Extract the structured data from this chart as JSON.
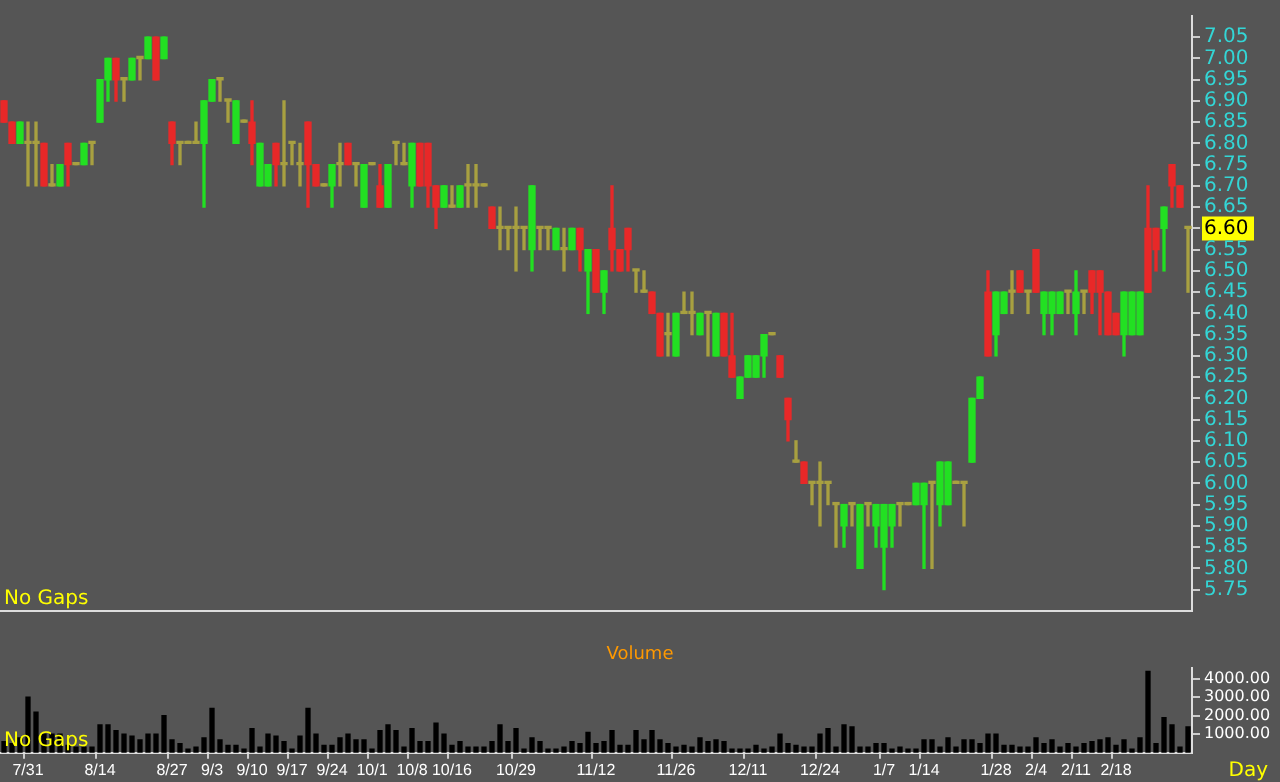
{
  "chart_data": [
    {
      "type": "candlestick",
      "categories": [
        null,
        null,
        null,
        null,
        null,
        null,
        null,
        null,
        null,
        null,
        null,
        null,
        null,
        null,
        null,
        null,
        null,
        null,
        null,
        null,
        null,
        null,
        null,
        null,
        null,
        null,
        null,
        null,
        null,
        null,
        null,
        null,
        null,
        null,
        null,
        null,
        null,
        null,
        null,
        null,
        null,
        null,
        null,
        null,
        null,
        null,
        null,
        null,
        null,
        null,
        null,
        null,
        null,
        null,
        null,
        null,
        null,
        null,
        null,
        null,
        null,
        null,
        null,
        null,
        null,
        null,
        null,
        null,
        null,
        null,
        null,
        null,
        null,
        null,
        null,
        null,
        null,
        null,
        null,
        null,
        null,
        null,
        null,
        null,
        null,
        null,
        null,
        null,
        null,
        null,
        null,
        null,
        null,
        null,
        null,
        null,
        null,
        null,
        null,
        null,
        null,
        null,
        null,
        null,
        null,
        null,
        null,
        null,
        null,
        null,
        null,
        null,
        null,
        null,
        null,
        null,
        null,
        null,
        null,
        null,
        null,
        null,
        null,
        null,
        null,
        null,
        null,
        null,
        null,
        null,
        null,
        null,
        null,
        null,
        null,
        null,
        null,
        null,
        null,
        null,
        null,
        null,
        null,
        null,
        null,
        null,
        null,
        null,
        null
      ],
      "ohlc": [
        [
          6.9,
          6.9,
          6.85,
          6.85
        ],
        [
          6.85,
          6.85,
          6.8,
          6.8
        ],
        [
          6.8,
          6.85,
          6.8,
          6.85
        ],
        [
          6.8,
          6.85,
          6.7,
          6.8
        ],
        [
          6.8,
          6.85,
          6.7,
          6.8
        ],
        [
          6.8,
          6.8,
          6.7,
          6.7
        ],
        [
          6.7,
          6.75,
          6.7,
          6.7
        ],
        [
          6.7,
          6.75,
          6.7,
          6.75
        ],
        [
          6.8,
          6.8,
          6.7,
          6.75
        ],
        [
          6.75,
          6.75,
          6.75,
          6.75
        ],
        [
          6.75,
          6.8,
          6.75,
          6.8
        ],
        [
          6.8,
          6.8,
          6.75,
          6.8
        ],
        [
          6.85,
          6.95,
          6.85,
          6.95
        ],
        [
          6.95,
          7,
          6.9,
          7
        ],
        [
          7,
          7,
          6.9,
          6.95
        ],
        [
          6.95,
          6.95,
          6.9,
          6.95
        ],
        [
          6.95,
          7,
          6.95,
          7
        ],
        [
          7,
          7,
          6.95,
          7
        ],
        [
          7,
          7.05,
          7,
          7.05
        ],
        [
          7.05,
          7.05,
          6.95,
          6.95
        ],
        [
          7,
          7.05,
          7,
          7.05
        ],
        [
          6.85,
          6.85,
          6.75,
          6.8
        ],
        [
          6.8,
          6.8,
          6.75,
          6.8
        ],
        [
          6.8,
          6.8,
          6.8,
          6.8
        ],
        [
          6.8,
          6.85,
          6.8,
          6.8
        ],
        [
          6.8,
          6.9,
          6.65,
          6.9
        ],
        [
          6.9,
          6.95,
          6.9,
          6.95
        ],
        [
          6.95,
          6.95,
          6.9,
          6.95
        ],
        [
          6.9,
          6.9,
          6.85,
          6.9
        ],
        [
          6.8,
          6.9,
          6.8,
          6.9
        ],
        [
          6.85,
          6.85,
          6.85,
          6.85
        ],
        [
          6.85,
          6.9,
          6.75,
          6.8
        ],
        [
          6.7,
          6.8,
          6.7,
          6.8
        ],
        [
          6.7,
          6.75,
          6.7,
          6.75
        ],
        [
          6.8,
          6.8,
          6.7,
          6.75
        ],
        [
          6.75,
          6.9,
          6.7,
          6.75
        ],
        [
          6.8,
          6.8,
          6.75,
          6.8
        ],
        [
          6.75,
          6.8,
          6.7,
          6.75
        ],
        [
          6.85,
          6.85,
          6.65,
          6.75
        ],
        [
          6.75,
          6.75,
          6.7,
          6.7
        ],
        [
          6.7,
          6.7,
          6.7,
          6.7
        ],
        [
          6.7,
          6.75,
          6.65,
          6.75
        ],
        [
          6.75,
          6.8,
          6.7,
          6.75
        ],
        [
          6.8,
          6.8,
          6.75,
          6.75
        ],
        [
          6.75,
          6.75,
          6.7,
          6.75
        ],
        [
          6.65,
          6.75,
          6.65,
          6.75
        ],
        [
          6.75,
          6.75,
          6.75,
          6.75
        ],
        [
          6.7,
          6.75,
          6.65,
          6.65
        ],
        [
          6.65,
          6.75,
          6.65,
          6.75
        ],
        [
          6.8,
          6.8,
          6.75,
          6.8
        ],
        [
          6.75,
          6.8,
          6.75,
          6.75
        ],
        [
          6.7,
          6.8,
          6.65,
          6.8
        ],
        [
          6.8,
          6.8,
          6.7,
          6.7
        ],
        [
          6.8,
          6.8,
          6.65,
          6.7
        ],
        [
          6.7,
          6.7,
          6.6,
          6.65
        ],
        [
          6.65,
          6.7,
          6.65,
          6.7
        ],
        [
          6.65,
          6.7,
          6.65,
          6.65
        ],
        [
          6.65,
          6.7,
          6.65,
          6.7
        ],
        [
          6.7,
          6.75,
          6.65,
          6.7
        ],
        [
          6.7,
          6.75,
          6.65,
          6.7
        ],
        [
          6.7,
          6.7,
          6.7,
          6.7
        ],
        [
          6.65,
          6.65,
          6.6,
          6.6
        ],
        [
          6.6,
          6.65,
          6.55,
          6.6
        ],
        [
          6.6,
          6.6,
          6.55,
          6.6
        ],
        [
          6.6,
          6.65,
          6.5,
          6.6
        ],
        [
          6.6,
          6.6,
          6.55,
          6.6
        ],
        [
          6.55,
          6.7,
          6.5,
          6.7
        ],
        [
          6.6,
          6.6,
          6.55,
          6.6
        ],
        [
          6.6,
          6.6,
          6.55,
          6.6
        ],
        [
          6.55,
          6.6,
          6.55,
          6.6
        ],
        [
          6.55,
          6.6,
          6.5,
          6.55
        ],
        [
          6.55,
          6.6,
          6.55,
          6.6
        ],
        [
          6.6,
          6.6,
          6.5,
          6.55
        ],
        [
          6.5,
          6.55,
          6.4,
          6.55
        ],
        [
          6.55,
          6.55,
          6.45,
          6.45
        ],
        [
          6.45,
          6.5,
          6.4,
          6.5
        ],
        [
          6.6,
          6.7,
          6.5,
          6.55
        ],
        [
          6.55,
          6.55,
          6.5,
          6.5
        ],
        [
          6.6,
          6.6,
          6.5,
          6.55
        ],
        [
          6.5,
          6.5,
          6.45,
          6.5
        ],
        [
          6.45,
          6.5,
          6.45,
          6.45
        ],
        [
          6.45,
          6.45,
          6.4,
          6.4
        ],
        [
          6.4,
          6.4,
          6.3,
          6.3
        ],
        [
          6.35,
          6.4,
          6.3,
          6.35
        ],
        [
          6.3,
          6.4,
          6.3,
          6.4
        ],
        [
          6.4,
          6.45,
          6.4,
          6.4
        ],
        [
          6.4,
          6.45,
          6.35,
          6.4
        ],
        [
          6.35,
          6.4,
          6.35,
          6.4
        ],
        [
          6.4,
          6.4,
          6.3,
          6.4
        ],
        [
          6.3,
          6.4,
          6.3,
          6.4
        ],
        [
          6.4,
          6.4,
          6.3,
          6.3
        ],
        [
          6.3,
          6.4,
          6.25,
          6.25
        ],
        [
          6.2,
          6.25,
          6.2,
          6.25
        ],
        [
          6.25,
          6.3,
          6.25,
          6.3
        ],
        [
          6.25,
          6.3,
          6.25,
          6.3
        ],
        [
          6.3,
          6.35,
          6.25,
          6.35
        ],
        [
          6.35,
          6.35,
          6.35,
          6.35
        ],
        [
          6.3,
          6.3,
          6.25,
          6.25
        ],
        [
          6.2,
          6.2,
          6.1,
          6.15
        ],
        [
          6.05,
          6.1,
          6.05,
          6.05
        ],
        [
          6.05,
          6.05,
          6,
          6
        ],
        [
          6,
          6,
          5.95,
          6
        ],
        [
          6,
          6.05,
          5.9,
          6
        ],
        [
          6,
          6,
          5.95,
          6
        ],
        [
          5.95,
          5.95,
          5.85,
          5.95
        ],
        [
          5.9,
          5.95,
          5.85,
          5.95
        ],
        [
          5.95,
          5.95,
          5.9,
          5.95
        ],
        [
          5.8,
          5.95,
          5.8,
          5.95
        ],
        [
          5.95,
          5.95,
          5.9,
          5.95
        ],
        [
          5.9,
          5.95,
          5.85,
          5.95
        ],
        [
          5.85,
          5.95,
          5.75,
          5.95
        ],
        [
          5.9,
          5.95,
          5.85,
          5.95
        ],
        [
          5.95,
          5.95,
          5.9,
          5.95
        ],
        [
          5.95,
          5.95,
          5.95,
          5.95
        ],
        [
          5.95,
          6,
          5.95,
          6
        ],
        [
          5.95,
          6,
          5.8,
          6
        ],
        [
          6,
          6,
          5.8,
          6
        ],
        [
          5.95,
          6.05,
          5.9,
          6.05
        ],
        [
          5.95,
          6.05,
          5.95,
          6.05
        ],
        [
          6,
          6,
          6,
          6
        ],
        [
          6,
          6,
          5.9,
          6
        ],
        [
          6.05,
          6.2,
          6.05,
          6.2
        ],
        [
          6.2,
          6.25,
          6.2,
          6.25
        ],
        [
          6.45,
          6.5,
          6.3,
          6.3
        ],
        [
          6.35,
          6.45,
          6.3,
          6.45
        ],
        [
          6.4,
          6.45,
          6.4,
          6.45
        ],
        [
          6.45,
          6.5,
          6.4,
          6.45
        ],
        [
          6.5,
          6.5,
          6.45,
          6.45
        ],
        [
          6.45,
          6.45,
          6.4,
          6.45
        ],
        [
          6.55,
          6.55,
          6.45,
          6.45
        ],
        [
          6.4,
          6.45,
          6.35,
          6.45
        ],
        [
          6.4,
          6.45,
          6.35,
          6.45
        ],
        [
          6.4,
          6.45,
          6.4,
          6.45
        ],
        [
          6.45,
          6.45,
          6.4,
          6.45
        ],
        [
          6.4,
          6.5,
          6.35,
          6.45
        ],
        [
          6.45,
          6.45,
          6.4,
          6.45
        ],
        [
          6.5,
          6.5,
          6.4,
          6.45
        ],
        [
          6.5,
          6.5,
          6.35,
          6.45
        ],
        [
          6.45,
          6.45,
          6.35,
          6.35
        ],
        [
          6.4,
          6.4,
          6.35,
          6.35
        ],
        [
          6.35,
          6.45,
          6.3,
          6.45
        ],
        [
          6.35,
          6.45,
          6.35,
          6.45
        ],
        [
          6.35,
          6.45,
          6.35,
          6.45
        ],
        [
          6.6,
          6.7,
          6.45,
          6.45
        ],
        [
          6.6,
          6.6,
          6.5,
          6.55
        ],
        [
          6.6,
          6.65,
          6.5,
          6.65
        ],
        [
          6.75,
          6.75,
          6.65,
          6.7
        ],
        [
          6.7,
          6.7,
          6.65,
          6.65
        ],
        [
          6.6,
          6.6,
          6.45,
          6.6
        ]
      ],
      "colors": [
        "#e82828",
        "#e82828",
        "#22e022",
        "#a8a040",
        "#a8a040",
        "#e82828",
        "#a8a040",
        "#22e022",
        "#e82828",
        "#a8a040",
        "#22e022",
        "#a8a040",
        "#22e022",
        "#22e022",
        "#e82828",
        "#a8a040",
        "#22e022",
        "#a8a040",
        "#22e022",
        "#e82828",
        "#22e022",
        "#e82828",
        "#a8a040",
        "#a8a040",
        "#a8a040",
        "#22e022",
        "#22e022",
        "#a8a040",
        "#a8a040",
        "#22e022",
        "#a8a040",
        "#e82828",
        "#22e022",
        "#22e022",
        "#e82828",
        "#a8a040",
        "#a8a040",
        "#a8a040",
        "#e82828",
        "#e82828",
        "#a8a040",
        "#22e022",
        "#a8a040",
        "#e82828",
        "#a8a040",
        "#22e022",
        "#a8a040",
        "#e82828",
        "#22e022",
        "#a8a040",
        "#a8a040",
        "#22e022",
        "#e82828",
        "#e82828",
        "#e82828",
        "#22e022",
        "#a8a040",
        "#22e022",
        "#a8a040",
        "#a8a040",
        "#a8a040",
        "#e82828",
        "#a8a040",
        "#a8a040",
        "#a8a040",
        "#a8a040",
        "#22e022",
        "#a8a040",
        "#a8a040",
        "#22e022",
        "#a8a040",
        "#22e022",
        "#e82828",
        "#22e022",
        "#e82828",
        "#22e022",
        "#e82828",
        "#e82828",
        "#e82828",
        "#a8a040",
        "#a8a040",
        "#e82828",
        "#e82828",
        "#a8a040",
        "#22e022",
        "#a8a040",
        "#a8a040",
        "#22e022",
        "#a8a040",
        "#22e022",
        "#e82828",
        "#e82828",
        "#22e022",
        "#22e022",
        "#22e022",
        "#22e022",
        "#a8a040",
        "#e82828",
        "#e82828",
        "#a8a040",
        "#e82828",
        "#a8a040",
        "#a8a040",
        "#a8a040",
        "#a8a040",
        "#22e022",
        "#a8a040",
        "#22e022",
        "#a8a040",
        "#22e022",
        "#22e022",
        "#22e022",
        "#a8a040",
        "#a8a040",
        "#22e022",
        "#22e022",
        "#a8a040",
        "#22e022",
        "#22e022",
        "#a8a040",
        "#a8a040",
        "#22e022",
        "#22e022",
        "#e82828",
        "#22e022",
        "#22e022",
        "#a8a040",
        "#e82828",
        "#a8a040",
        "#e82828",
        "#22e022",
        "#22e022",
        "#22e022",
        "#a8a040",
        "#22e022",
        "#a8a040",
        "#e82828",
        "#e82828",
        "#e82828",
        "#e82828",
        "#22e022",
        "#22e022",
        "#22e022",
        "#e82828",
        "#e82828",
        "#22e022",
        "#e82828",
        "#e82828",
        "#a8a040"
      ],
      "ylim": [
        5.7,
        7.1
      ],
      "yticks": [
        {
          "value": 5.75,
          "label": "5.75"
        },
        {
          "value": 5.8,
          "label": "5.80"
        },
        {
          "value": 5.85,
          "label": "5.85"
        },
        {
          "value": 5.9,
          "label": "5.90"
        },
        {
          "value": 5.95,
          "label": "5.95"
        },
        {
          "value": 6,
          "label": "6.00"
        },
        {
          "value": 6.05,
          "label": "6.05"
        },
        {
          "value": 6.1,
          "label": "6.10"
        },
        {
          "value": 6.15,
          "label": "6.15"
        },
        {
          "value": 6.2,
          "label": "6.20"
        },
        {
          "value": 6.25,
          "label": "6.25"
        },
        {
          "value": 6.3,
          "label": "6.30"
        },
        {
          "value": 6.35,
          "label": "6.35"
        },
        {
          "value": 6.4,
          "label": "6.40"
        },
        {
          "value": 6.45,
          "label": "6.45"
        },
        {
          "value": 6.5,
          "label": "6.50"
        },
        {
          "value": 6.55,
          "label": "6.55"
        },
        {
          "value": 6.6,
          "label": "6.60"
        },
        {
          "value": 6.65,
          "label": "6.65"
        },
        {
          "value": 6.7,
          "label": "6.70"
        },
        {
          "value": 6.75,
          "label": "6.75"
        },
        {
          "value": 6.8,
          "label": "6.80"
        },
        {
          "value": 6.85,
          "label": "6.85"
        },
        {
          "value": 6.9,
          "label": "6.90"
        },
        {
          "value": 6.95,
          "label": "6.95"
        },
        {
          "value": 7,
          "label": "7.00"
        },
        {
          "value": 7.05,
          "label": "7.05"
        }
      ],
      "annotations": [
        "No Gaps"
      ]
    },
    {
      "type": "bar",
      "title": "Volume",
      "xlabel": "Day",
      "categories": [
        null,
        null,
        null,
        "7/31",
        null,
        null,
        null,
        null,
        null,
        null,
        null,
        null,
        "8/14",
        null,
        null,
        null,
        null,
        null,
        null,
        null,
        null,
        "8/27",
        null,
        null,
        null,
        null,
        "9/3",
        null,
        null,
        null,
        null,
        "9/10",
        null,
        null,
        null,
        null,
        "9/17",
        null,
        null,
        null,
        null,
        "9/24",
        null,
        null,
        null,
        null,
        "10/1",
        null,
        null,
        null,
        null,
        "10/8",
        null,
        null,
        null,
        null,
        "10/16",
        null,
        null,
        null,
        null,
        null,
        null,
        null,
        "10/29",
        null,
        null,
        null,
        null,
        null,
        null,
        null,
        null,
        null,
        "11/12",
        null,
        null,
        null,
        null,
        null,
        null,
        null,
        null,
        null,
        "11/26",
        null,
        null,
        null,
        null,
        null,
        null,
        null,
        null,
        "12/11",
        null,
        null,
        null,
        null,
        null,
        null,
        null,
        null,
        "12/24",
        null,
        null,
        null,
        null,
        null,
        null,
        null,
        "1/7",
        null,
        null,
        null,
        null,
        "1/14",
        null,
        null,
        null,
        null,
        null,
        null,
        null,
        null,
        "1/28",
        null,
        null,
        null,
        null,
        "2/4",
        null,
        null,
        null,
        null,
        "2/11",
        null,
        null,
        null,
        null,
        "2/18",
        null,
        null,
        null,
        null,
        null,
        null,
        null,
        null,
        null
      ],
      "values": [
        600,
        500,
        800,
        3000,
        2200,
        1000,
        1000,
        1000,
        400,
        300,
        300,
        300,
        1500,
        1500,
        1200,
        1000,
        900,
        700,
        1000,
        1000,
        2000,
        700,
        500,
        200,
        300,
        800,
        2400,
        700,
        400,
        400,
        200,
        1300,
        300,
        1000,
        900,
        600,
        200,
        900,
        2400,
        1000,
        400,
        400,
        800,
        1000,
        700,
        700,
        200,
        1200,
        1500,
        1200,
        300,
        1300,
        600,
        600,
        1600,
        1000,
        400,
        600,
        300,
        300,
        300,
        600,
        1500,
        600,
        1300,
        200,
        800,
        600,
        200,
        200,
        300,
        600,
        500,
        1100,
        500,
        600,
        1200,
        400,
        400,
        1200,
        700,
        1200,
        700,
        500,
        300,
        400,
        300,
        800,
        600,
        700,
        600,
        200,
        200,
        200,
        400,
        200,
        300,
        1000,
        500,
        400,
        300,
        300,
        1000,
        1300,
        300,
        1500,
        1400,
        300,
        300,
        500,
        500,
        200,
        300,
        200,
        200,
        700,
        700,
        300,
        800,
        300,
        700,
        700,
        500,
        1000,
        1000,
        400,
        400,
        300,
        300,
        800,
        500,
        700,
        300,
        500,
        300,
        500,
        600,
        700,
        800,
        400,
        700,
        200,
        800,
        4400,
        500,
        1900,
        1500,
        300,
        1400
      ],
      "color": "#000000",
      "ylim": [
        0,
        4600
      ],
      "yticks": [
        {
          "value": 1000,
          "label": "1000.00"
        },
        {
          "value": 2000,
          "label": "2000.00"
        },
        {
          "value": 3000,
          "label": "3000.00"
        },
        {
          "value": 4000,
          "label": "4000.00"
        }
      ],
      "annotations": [
        "No Gaps"
      ]
    }
  ]
}
